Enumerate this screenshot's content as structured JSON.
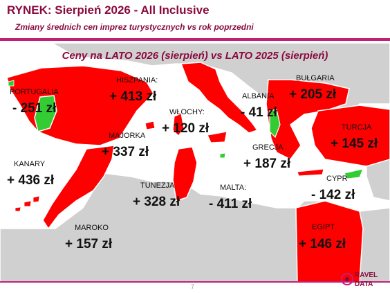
{
  "header": {
    "title": "RYNEK: Sierpień 2026 - All Inclusive",
    "subtitle": "Zmiany średnich cen imprez turystycznych vs rok poprzedni"
  },
  "map_title": "Ceny na LATO 2026 (sierpień) vs  LATO 2025 (sierpień)",
  "colors": {
    "brand": "#8a0a3e",
    "accent_line": "#c0207a",
    "increase": "#ff0000",
    "decrease": "#33cc33",
    "land": "#d0d0d0",
    "border": "#ffffff"
  },
  "countries": [
    {
      "id": "portugalia",
      "name": "PORTUGALIA",
      "value": "- 251 zł",
      "trend": "decrease"
    },
    {
      "id": "hiszpania",
      "name": "HISZPANIA:",
      "value": "+ 413 zł",
      "trend": "increase"
    },
    {
      "id": "wlochy",
      "name": "WŁOCHY:",
      "value": "+ 120 zł",
      "trend": "increase"
    },
    {
      "id": "albania",
      "name": "ALBANIA",
      "value": "- 41 zł",
      "trend": "decrease"
    },
    {
      "id": "bulgaria",
      "name": "BUŁGARIA",
      "value": "+ 205 zł",
      "trend": "increase"
    },
    {
      "id": "majorka",
      "name": "MAJORKA",
      "value": "+ 337 zł",
      "trend": "increase"
    },
    {
      "id": "turcja",
      "name": "TURCJA",
      "value": "+ 145 zł",
      "trend": "increase"
    },
    {
      "id": "kanary",
      "name": "KANARY",
      "value": "+ 436 zł",
      "trend": "increase"
    },
    {
      "id": "grecja",
      "name": "GRECJA",
      "value": "+ 187 zł",
      "trend": "increase"
    },
    {
      "id": "tunezja",
      "name": "TUNEZJA",
      "value": "+ 328 zł",
      "trend": "increase"
    },
    {
      "id": "malta",
      "name": "MALTA:",
      "value": "- 411 zł",
      "trend": "decrease"
    },
    {
      "id": "cypr",
      "name": "CYPR",
      "value": "- 142 zł",
      "trend": "decrease"
    },
    {
      "id": "maroko",
      "name": "MAROKO",
      "value": "+ 157 zł",
      "trend": "increase"
    },
    {
      "id": "egipt",
      "name": "EGIPT",
      "value": "+ 146 zł",
      "trend": "increase"
    }
  ],
  "footer": {
    "page_number": "7",
    "logo_text_top": "RAVEL",
    "logo_text_bottom": "DATA"
  }
}
